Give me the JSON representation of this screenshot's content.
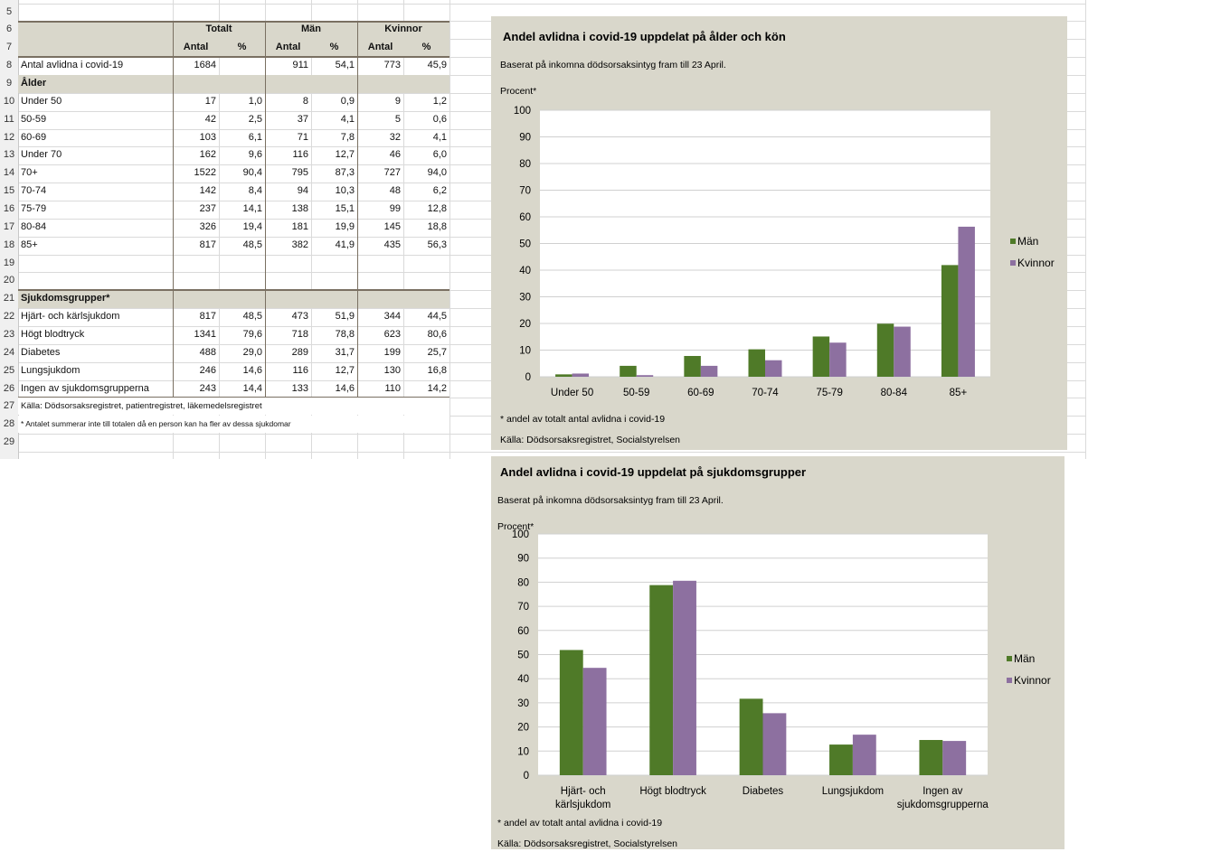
{
  "sheet": {
    "row_numbers": [
      "5",
      "6",
      "7",
      "8",
      "9",
      "10",
      "11",
      "12",
      "13",
      "14",
      "15",
      "16",
      "17",
      "18",
      "19",
      "20",
      "21",
      "22",
      "23",
      "24",
      "25",
      "26",
      "27",
      "28",
      "29"
    ],
    "group_headers": [
      "Totalt",
      "Män",
      "Kvinnor"
    ],
    "sub_headers": [
      "Antal",
      "%",
      "Antal",
      "%",
      "Antal",
      "%"
    ],
    "rows": [
      {
        "label": "Antal avlidna i covid-19",
        "values": [
          "1684",
          "",
          "911",
          "54,1",
          "773",
          "45,9"
        ]
      },
      {
        "label": "Ålder",
        "section": true,
        "values": []
      },
      {
        "label": "Under 50",
        "values": [
          "17",
          "1,0",
          "8",
          "0,9",
          "9",
          "1,2"
        ]
      },
      {
        "label": "50-59",
        "values": [
          "42",
          "2,5",
          "37",
          "4,1",
          "5",
          "0,6"
        ]
      },
      {
        "label": "60-69",
        "values": [
          "103",
          "6,1",
          "71",
          "7,8",
          "32",
          "4,1"
        ]
      },
      {
        "label": "Under 70",
        "values": [
          "162",
          "9,6",
          "116",
          "12,7",
          "46",
          "6,0"
        ]
      },
      {
        "label": "70+",
        "values": [
          "1522",
          "90,4",
          "795",
          "87,3",
          "727",
          "94,0"
        ]
      },
      {
        "label": "70-74",
        "values": [
          "142",
          "8,4",
          "94",
          "10,3",
          "48",
          "6,2"
        ]
      },
      {
        "label": "75-79",
        "values": [
          "237",
          "14,1",
          "138",
          "15,1",
          "99",
          "12,8"
        ]
      },
      {
        "label": "80-84",
        "values": [
          "326",
          "19,4",
          "181",
          "19,9",
          "145",
          "18,8"
        ]
      },
      {
        "label": "85+",
        "values": [
          "817",
          "48,5",
          "382",
          "41,9",
          "435",
          "56,3"
        ]
      },
      {
        "label": "",
        "values": []
      },
      {
        "label": "",
        "values": []
      },
      {
        "label": "Sjukdomsgrupper*",
        "section": true,
        "values": []
      },
      {
        "label": "Hjärt- och kärlsjukdom",
        "values": [
          "817",
          "48,5",
          "473",
          "51,9",
          "344",
          "44,5"
        ]
      },
      {
        "label": "Högt blodtryck",
        "values": [
          "1341",
          "79,6",
          "718",
          "78,8",
          "623",
          "80,6"
        ]
      },
      {
        "label": "Diabetes",
        "values": [
          "488",
          "29,0",
          "289",
          "31,7",
          "199",
          "25,7"
        ]
      },
      {
        "label": "Lungsjukdom",
        "values": [
          "246",
          "14,6",
          "116",
          "12,7",
          "130",
          "16,8"
        ]
      },
      {
        "label": "Ingen av sjukdomsgrupperna",
        "values": [
          "243",
          "14,4",
          "133",
          "14,6",
          "110",
          "14,2"
        ]
      }
    ],
    "source_note": "Källa: Dödsorsaksregistret, patientregistret, läkemedelsregistret",
    "footnote": "* Antalet summerar inte till totalen då en person kan ha fler av dessa sjukdomar"
  },
  "colors": {
    "man": "#4f7a28",
    "kvinna": "#8d70a0",
    "chart_bg": "#d9d7cb",
    "header_bg": "#d9d7cb"
  },
  "chart_data": [
    {
      "type": "bar",
      "title": "Andel avlidna i covid-19 uppdelat på ålder och kön",
      "subtitle": "Baserat på inkomna dödsorsaksintyg fram till 23 April.",
      "ylabel": "Procent*",
      "ylim": [
        0,
        100
      ],
      "yticks": [
        "0",
        "10",
        "20",
        "30",
        "40",
        "50",
        "60",
        "70",
        "80",
        "90",
        "100"
      ],
      "grid": true,
      "legend": "right",
      "categories": [
        "Under 50",
        "50-59",
        "60-69",
        "70-74",
        "75-79",
        "80-84",
        "85+"
      ],
      "series": [
        {
          "name": "Män",
          "values": [
            0.9,
            4.1,
            7.8,
            10.3,
            15.1,
            19.9,
            41.9
          ]
        },
        {
          "name": "Kvinnor",
          "values": [
            1.2,
            0.6,
            4.1,
            6.2,
            12.8,
            18.8,
            56.3
          ]
        }
      ],
      "footnote": "* andel av totalt antal avlidna i covid-19",
      "source": "Källa: Dödsorsaksregistret, Socialstyrelsen"
    },
    {
      "type": "bar",
      "title": "Andel avlidna i covid-19 uppdelat på sjukdomsgrupper",
      "subtitle": "Baserat på inkomna dödsorsaksintyg fram till 23 April.",
      "ylabel": "Procent*",
      "ylim": [
        0,
        100
      ],
      "yticks": [
        "0",
        "10",
        "20",
        "30",
        "40",
        "50",
        "60",
        "70",
        "80",
        "90",
        "100"
      ],
      "grid": true,
      "legend": "right",
      "categories": [
        [
          "Hjärt- och",
          "kärlsjukdom"
        ],
        [
          "Högt blodtryck"
        ],
        [
          "Diabetes"
        ],
        [
          "Lungsjukdom"
        ],
        [
          "Ingen av",
          "sjukdomsgrupperna"
        ]
      ],
      "series": [
        {
          "name": "Män",
          "values": [
            51.9,
            78.8,
            31.7,
            12.7,
            14.6
          ]
        },
        {
          "name": "Kvinnor",
          "values": [
            44.5,
            80.6,
            25.7,
            16.8,
            14.2
          ]
        }
      ],
      "footnote": "* andel av totalt antal avlidna i covid-19",
      "source": "Källa: Dödsorsaksregistret, Socialstyrelsen"
    }
  ]
}
